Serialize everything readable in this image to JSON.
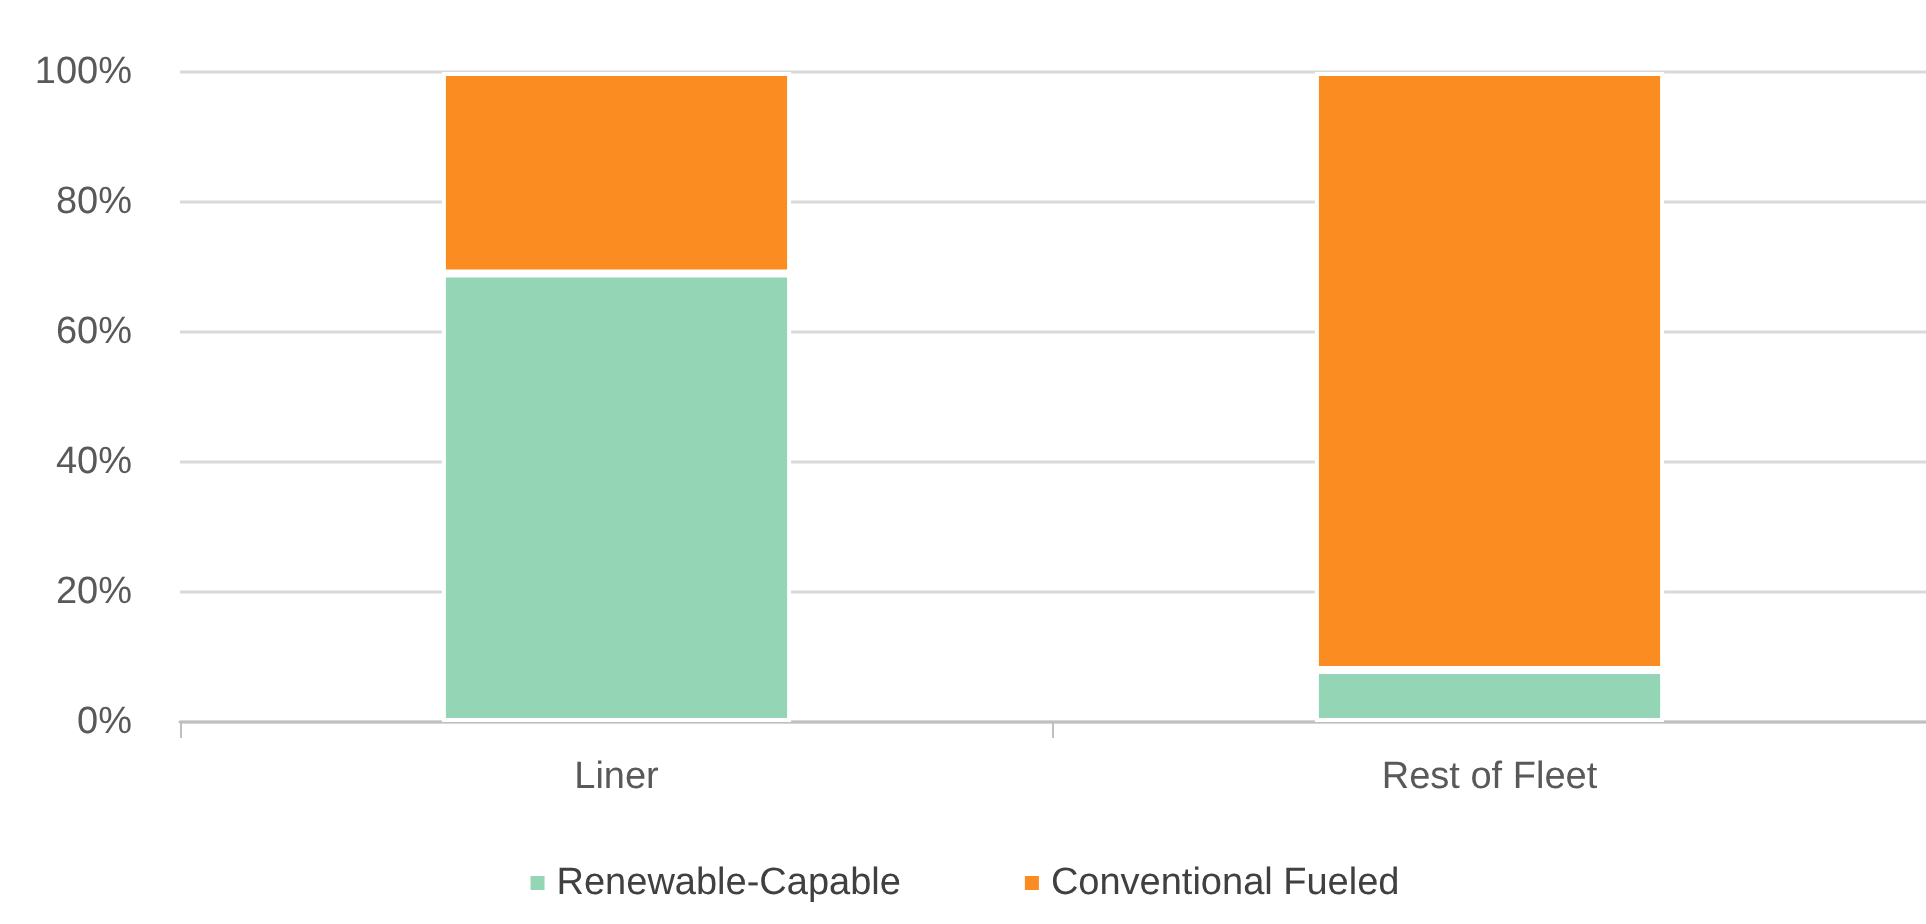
{
  "chart_data": {
    "type": "bar",
    "stacked": true,
    "categories": [
      "Liner",
      "Rest of Fleet"
    ],
    "series": [
      {
        "name": "Renewable-Capable",
        "color": "#93d5b5",
        "values": [
          69,
          8
        ]
      },
      {
        "name": "Conventional Fueled",
        "color": "#fa8c22",
        "values": [
          31,
          92
        ]
      }
    ],
    "ylim": [
      0,
      100
    ],
    "yticks": [
      {
        "value": 0,
        "label": "0%"
      },
      {
        "value": 20,
        "label": "20%"
      },
      {
        "value": 40,
        "label": "40%"
      },
      {
        "value": 60,
        "label": "60%"
      },
      {
        "value": 80,
        "label": "80%"
      },
      {
        "value": 100,
        "label": "100%"
      }
    ],
    "grid": "y",
    "legend": "bottom"
  }
}
